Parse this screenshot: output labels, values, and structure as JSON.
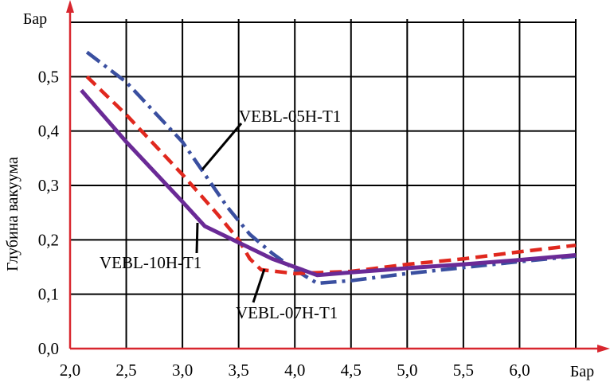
{
  "chart_data": {
    "type": "line",
    "title": "",
    "xlabel": "",
    "ylabel": "Глубина вакуума",
    "x_unit": "Бар",
    "y_unit": "Бар",
    "xlim": [
      2.0,
      6.5
    ],
    "ylim": [
      0.0,
      0.6
    ],
    "xticks": [
      "2,0",
      "2,5",
      "3,0",
      "3,5",
      "4,0",
      "4,5",
      "5,0",
      "5,5",
      "6,0"
    ],
    "yticks": [
      "0,0",
      "0,1",
      "0,2",
      "0,3",
      "0,4",
      "0,5"
    ],
    "grid": true,
    "legend": "none",
    "series": [
      {
        "name": "VEBL-05H-T1",
        "style": "dash-dot",
        "color": "#3a4fa0",
        "x": [
          2.15,
          2.5,
          3.0,
          3.4,
          3.6,
          3.8,
          4.0,
          4.2,
          4.5,
          5.0,
          6.0,
          6.5
        ],
        "y": [
          0.545,
          0.49,
          0.38,
          0.26,
          0.21,
          0.175,
          0.145,
          0.12,
          0.125,
          0.138,
          0.16,
          0.17
        ]
      },
      {
        "name": "VEBL-07H-T1",
        "style": "dashed",
        "color": "#e0281e",
        "x": [
          2.15,
          2.5,
          3.0,
          3.3,
          3.5,
          3.6,
          3.7,
          4.0,
          4.5,
          5.0,
          5.5,
          6.0,
          6.5
        ],
        "y": [
          0.5,
          0.43,
          0.32,
          0.25,
          0.2,
          0.165,
          0.145,
          0.138,
          0.142,
          0.155,
          0.165,
          0.178,
          0.19
        ]
      },
      {
        "name": "VEBL-10H-T1",
        "style": "solid",
        "color": "#6a2a96",
        "x": [
          2.1,
          2.5,
          3.0,
          3.2,
          3.5,
          3.8,
          4.2,
          4.5,
          5.0,
          5.5,
          6.0,
          6.5
        ],
        "y": [
          0.475,
          0.38,
          0.27,
          0.225,
          0.195,
          0.165,
          0.135,
          0.14,
          0.148,
          0.155,
          0.163,
          0.172
        ]
      }
    ],
    "annotations": [
      {
        "text": "VEBL-05H-T1",
        "series": "VEBL-05H-T1"
      },
      {
        "text": "VEBL-10H-T1",
        "series": "VEBL-10H-T1"
      },
      {
        "text": "VEBL-07H-T1",
        "series": "VEBL-07H-T1"
      }
    ]
  }
}
